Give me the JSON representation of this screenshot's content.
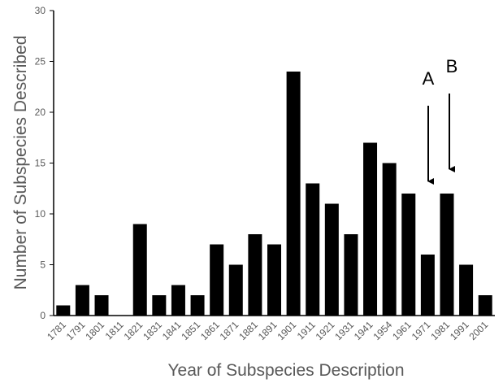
{
  "chart_data": {
    "type": "bar",
    "x_label": "Year of Subspecies Description",
    "y_label": "Number of Subspecies Described",
    "categories": [
      "1781",
      "1791",
      "1801",
      "1811",
      "1821",
      "1831",
      "1841",
      "1851",
      "1861",
      "1871",
      "1881",
      "1891",
      "1901",
      "1911",
      "1921",
      "1931",
      "1941",
      "1954",
      "1961",
      "1971",
      "1981",
      "1991",
      "2001"
    ],
    "values": [
      1,
      3,
      2,
      0,
      9,
      2,
      3,
      2,
      7,
      5,
      8,
      7,
      24,
      13,
      11,
      8,
      17,
      15,
      12,
      6,
      12,
      5,
      2
    ],
    "color": "#000000",
    "ylim": [
      0,
      30
    ],
    "yticks": [
      0,
      5,
      10,
      15,
      20,
      25,
      30
    ],
    "grid": false,
    "annotations": [
      "A",
      "B"
    ]
  }
}
